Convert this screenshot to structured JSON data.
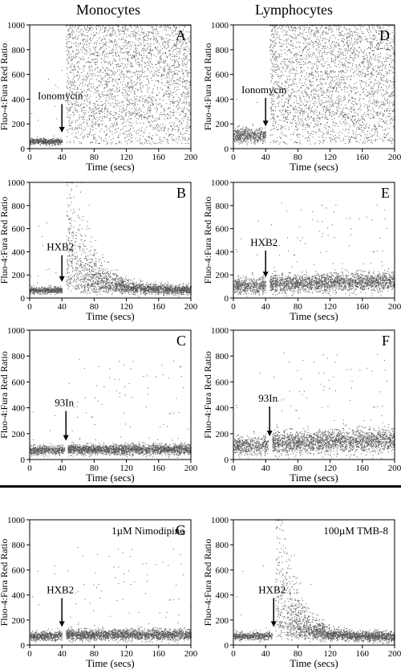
{
  "figure": {
    "column_titles": [
      "Monocytes",
      "Lymphocytes"
    ],
    "colors": {
      "points": "#555555",
      "axes": "#000000",
      "background": "#ffffff"
    }
  },
  "chart_data": [
    {
      "type": "scatter",
      "panel_letter": "A",
      "cell_type": "Monocytes",
      "annotation": "Ionomycin",
      "annotation_x": 40,
      "xlabel": "Time (secs)",
      "ylabel": "Fluo-4:Fura Red Ratio",
      "xlim": [
        0,
        200
      ],
      "ylim": [
        0,
        1000
      ],
      "x_ticks": [
        0,
        40,
        80,
        120,
        160,
        200
      ],
      "y_ticks": [
        0,
        200,
        400,
        600,
        800,
        1000
      ],
      "gap": [
        40,
        44
      ],
      "baseline": {
        "x": [
          0,
          40
        ],
        "level": 60,
        "spread": 12
      },
      "post": {
        "kind": "saturate",
        "x_start": 45,
        "level": 650
      }
    },
    {
      "type": "scatter",
      "panel_letter": "B",
      "cell_type": "Monocytes",
      "annotation": "HXB2",
      "annotation_x": 40,
      "xlabel": "Time (secs)",
      "ylabel": "Fluo-4:Fura Red Ratio",
      "xlim": [
        0,
        200
      ],
      "ylim": [
        0,
        1000
      ],
      "x_ticks": [
        0,
        40,
        80,
        120,
        160,
        200
      ],
      "y_ticks": [
        0,
        200,
        400,
        600,
        800,
        1000
      ],
      "gap": [
        40,
        45
      ],
      "baseline": {
        "x": [
          0,
          40
        ],
        "level": 70,
        "spread": 14
      },
      "post": {
        "kind": "spike",
        "x_start": 45,
        "peak": 700,
        "final": 70,
        "tau": 28
      }
    },
    {
      "type": "scatter",
      "panel_letter": "C",
      "cell_type": "Monocytes",
      "annotation": "93In",
      "annotation_x": 45,
      "xlabel": "Time (secs)",
      "ylabel": "Fluo-4:Fura Red Ratio",
      "xlim": [
        0,
        200
      ],
      "ylim": [
        0,
        1000
      ],
      "x_ticks": [
        0,
        40,
        80,
        120,
        160,
        200
      ],
      "y_ticks": [
        0,
        200,
        400,
        600,
        800,
        1000
      ],
      "gap": [
        43,
        47
      ],
      "baseline": {
        "x": [
          0,
          43
        ],
        "level": 75,
        "spread": 18
      },
      "post": {
        "kind": "flat",
        "x_start": 47,
        "level": 80,
        "spread": 20
      }
    },
    {
      "type": "scatter",
      "panel_letter": "D",
      "cell_type": "Lymphocytes",
      "annotation": "Ionomycin",
      "annotation_x": 40,
      "xlabel": "Time (secs)",
      "ylabel": "Fluo-4:Fura Red Ratio",
      "xlim": [
        0,
        200
      ],
      "ylim": [
        0,
        1000
      ],
      "x_ticks": [
        0,
        40,
        80,
        120,
        160,
        200
      ],
      "y_ticks": [
        0,
        200,
        400,
        600,
        800,
        1000
      ],
      "gap": [
        40,
        45
      ],
      "baseline": {
        "x": [
          0,
          40
        ],
        "level": 110,
        "spread": 30
      },
      "post": {
        "kind": "saturate",
        "x_start": 45,
        "level": 600
      }
    },
    {
      "type": "scatter",
      "panel_letter": "E",
      "cell_type": "Lymphocytes",
      "annotation": "HXB2",
      "annotation_x": 40,
      "xlabel": "Time (secs)",
      "ylabel": "Fluo-4:Fura Red Ratio",
      "xlim": [
        0,
        200
      ],
      "ylim": [
        0,
        1000
      ],
      "x_ticks": [
        0,
        40,
        80,
        120,
        160,
        200
      ],
      "y_ticks": [
        0,
        200,
        400,
        600,
        800,
        1000
      ],
      "gap": [
        40,
        45
      ],
      "baseline": {
        "x": [
          0,
          40
        ],
        "level": 110,
        "spread": 35
      },
      "post": {
        "kind": "rise",
        "x_start": 45,
        "level": 125,
        "spread": 40
      }
    },
    {
      "type": "scatter",
      "panel_letter": "F",
      "cell_type": "Lymphocytes",
      "annotation": "93In",
      "annotation_x": 45,
      "xlabel": "Time (secs)",
      "ylabel": "Fluo-4:Fura Red Ratio",
      "xlim": [
        0,
        200
      ],
      "ylim": [
        0,
        1000
      ],
      "x_ticks": [
        0,
        40,
        80,
        120,
        160,
        200
      ],
      "y_ticks": [
        0,
        200,
        400,
        600,
        800,
        1000
      ],
      "gap": [
        43,
        48
      ],
      "baseline": {
        "x": [
          0,
          43
        ],
        "level": 110,
        "spread": 35
      },
      "post": {
        "kind": "rise",
        "x_start": 48,
        "level": 130,
        "spread": 45
      }
    },
    {
      "type": "scatter",
      "panel_letter": "G",
      "condition": "1µM Nimodipine",
      "annotation": "HXB2",
      "annotation_x": 40,
      "xlabel": "Time (secs)",
      "ylabel": "Fluo-4:Fura Red Ratio",
      "xlim": [
        0,
        200
      ],
      "ylim": [
        0,
        1000
      ],
      "x_ticks": [
        0,
        40,
        80,
        120,
        160,
        200
      ],
      "y_ticks": [
        0,
        200,
        400,
        600,
        800,
        1000
      ],
      "gap": [
        40,
        45
      ],
      "baseline": {
        "x": [
          0,
          40
        ],
        "level": 75,
        "spread": 18
      },
      "post": {
        "kind": "flat",
        "x_start": 45,
        "level": 85,
        "spread": 22
      }
    },
    {
      "type": "scatter",
      "panel_letter": "",
      "condition": "100µM TMB-8",
      "annotation": "HXB2",
      "annotation_x": 50,
      "xlabel": "Time (secs)",
      "ylabel": "Fluo-4:Fura Red Ratio",
      "xlim": [
        0,
        200
      ],
      "ylim": [
        0,
        1000
      ],
      "x_ticks": [
        0,
        40,
        80,
        120,
        160,
        200
      ],
      "y_ticks": [
        0,
        200,
        400,
        600,
        800,
        1000
      ],
      "gap": [
        48,
        52
      ],
      "baseline": {
        "x": [
          0,
          48
        ],
        "level": 75,
        "spread": 16
      },
      "post": {
        "kind": "spike",
        "x_start": 52,
        "peak": 750,
        "final": 70,
        "tau": 22
      }
    }
  ]
}
